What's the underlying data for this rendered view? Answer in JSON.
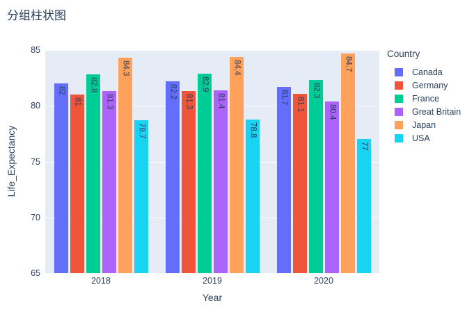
{
  "chart_data": {
    "type": "bar",
    "mode": "grouped",
    "title": "分组柱状图",
    "xlabel": "Year",
    "ylabel": "Life_Expectancy",
    "ylim": [
      65,
      85
    ],
    "yticks": [
      65,
      70,
      75,
      80,
      85
    ],
    "categories": [
      "2018",
      "2019",
      "2020"
    ],
    "legend_title": "Country",
    "legend_position": "right",
    "grid": true,
    "plot_bgcolor": "#E5ECF6",
    "grid_color": "#ffffff",
    "text_color": "#2a3f5f",
    "bar_labels_rotated": true,
    "series": [
      {
        "name": "Canada",
        "color": "#636EFA",
        "values": [
          82,
          82.2,
          81.7
        ]
      },
      {
        "name": "Germany",
        "color": "#EF553B",
        "values": [
          81,
          81.3,
          81.1
        ]
      },
      {
        "name": "France",
        "color": "#00CC96",
        "values": [
          82.8,
          82.9,
          82.3
        ]
      },
      {
        "name": "Great Britain",
        "color": "#AB63FA",
        "values": [
          81.3,
          81.4,
          80.4
        ]
      },
      {
        "name": "Japan",
        "color": "#FFA15A",
        "values": [
          84.3,
          84.4,
          84.7
        ]
      },
      {
        "name": "USA",
        "color": "#19D3F3",
        "values": [
          78.7,
          78.8,
          77
        ]
      }
    ]
  }
}
